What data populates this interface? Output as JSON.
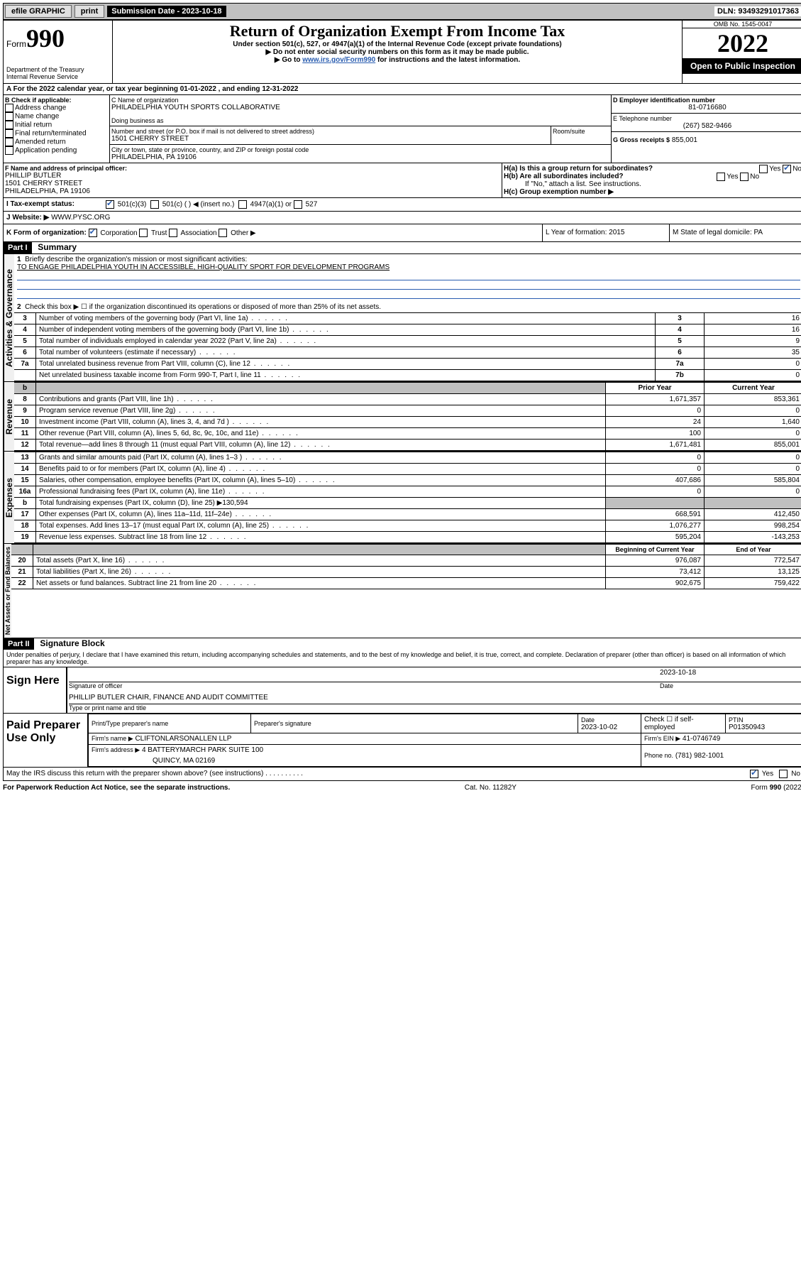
{
  "topbar": {
    "efile": "efile GRAPHIC",
    "print": "print",
    "subdate_label": "Submission Date - ",
    "subdate": "2023-10-18",
    "dln": "DLN: 93493291017363"
  },
  "header": {
    "form_label": "Form",
    "form_num": "990",
    "title": "Return of Organization Exempt From Income Tax",
    "sub1": "Under section 501(c), 527, or 4947(a)(1) of the Internal Revenue Code (except private foundations)",
    "sub2": "▶ Do not enter social security numbers on this form as it may be made public.",
    "sub3_prefix": "▶ Go to ",
    "sub3_link": "www.irs.gov/Form990",
    "sub3_suffix": " for instructions and the latest information.",
    "dept": "Department of the Treasury",
    "irs": "Internal Revenue Service",
    "omb": "OMB No. 1545-0047",
    "year": "2022",
    "inspect": "Open to Public Inspection"
  },
  "sectionA": {
    "calendar": "A For the 2022 calendar year, or tax year beginning 01-01-2022   , and ending 12-31-2022",
    "checkB_label": "B Check if applicable:",
    "checks": [
      "Address change",
      "Name change",
      "Initial return",
      "Final return/terminated",
      "Amended return",
      "Application pending"
    ],
    "nameC_label": "C Name of organization",
    "orgname": "PHILADELPHIA YOUTH SPORTS COLLABORATIVE",
    "dba": "Doing business as",
    "street_label": "Number and street (or P.O. box if mail is not delivered to street address)",
    "room": "Room/suite",
    "street": "1501 CHERRY STREET",
    "city_label": "City or town, state or province, country, and ZIP or foreign postal code",
    "city": "PHILADELPHIA, PA  19106",
    "ein_label": "D Employer identification number",
    "ein": "81-0716680",
    "tel_label": "E Telephone number",
    "tel": "(267) 582-9466",
    "gross_label": "G Gross receipts $",
    "gross": "855,001",
    "officerF_label": "F Name and address of principal officer:",
    "officer_name": "PHILLIP BUTLER",
    "officer_street": "1501 CHERRY STREET",
    "officer_city": "PHILADELPHIA, PA  19106",
    "Ha_label": "H(a)  Is this a group return for subordinates?",
    "Hb_label": "H(b)  Are all subordinates included?",
    "Hb_note": "If \"No,\" attach a list. See instructions.",
    "Hc_label": "H(c)  Group exemption number ▶",
    "yes": "Yes",
    "no": "No",
    "taxI_label": "I   Tax-exempt status:",
    "tax_opts": [
      "501(c)(3)",
      "501(c) (  ) ◀ (insert no.)",
      "4947(a)(1) or",
      "527"
    ],
    "websiteJ_label": "J   Website: ▶",
    "website": "WWW.PYSC.ORG",
    "formK_label": "K Form of organization:",
    "formK_opts": [
      "Corporation",
      "Trust",
      "Association",
      "Other ▶"
    ],
    "yearL": "L Year of formation: 2015",
    "stateM": "M State of legal domicile: PA"
  },
  "partI": {
    "header": "Part I",
    "title": "Summary",
    "line1_label": "Briefly describe the organization's mission or most significant activities:",
    "mission": "TO ENGAGE PHILADELPHIA YOUTH IN ACCESSIBLE, HIGH-QUALITY SPORT FOR DEVELOPMENT PROGRAMS",
    "line2": "Check this box ▶ ☐ if the organization discontinued its operations or disposed of more than 25% of its net assets.",
    "vlabels": {
      "gov": "Activities & Governance",
      "rev": "Revenue",
      "exp": "Expenses",
      "net": "Net Assets or Fund Balances"
    },
    "gov_rows": [
      {
        "n": "3",
        "d": "Number of voting members of the governing body (Part VI, line 1a)",
        "box": "3",
        "v": "16"
      },
      {
        "n": "4",
        "d": "Number of independent voting members of the governing body (Part VI, line 1b)",
        "box": "4",
        "v": "16"
      },
      {
        "n": "5",
        "d": "Total number of individuals employed in calendar year 2022 (Part V, line 2a)",
        "box": "5",
        "v": "9"
      },
      {
        "n": "6",
        "d": "Total number of volunteers (estimate if necessary)",
        "box": "6",
        "v": "35"
      },
      {
        "n": "7a",
        "d": "Total unrelated business revenue from Part VIII, column (C), line 12",
        "box": "7a",
        "v": "0"
      },
      {
        "n": "",
        "d": "Net unrelated business taxable income from Form 990-T, Part I, line 11",
        "box": "7b",
        "v": "0"
      }
    ],
    "prior": "Prior Year",
    "current": "Current Year",
    "rev_rows": [
      {
        "n": "8",
        "d": "Contributions and grants (Part VIII, line 1h)",
        "p": "1,671,357",
        "c": "853,361"
      },
      {
        "n": "9",
        "d": "Program service revenue (Part VIII, line 2g)",
        "p": "0",
        "c": "0"
      },
      {
        "n": "10",
        "d": "Investment income (Part VIII, column (A), lines 3, 4, and 7d )",
        "p": "24",
        "c": "1,640"
      },
      {
        "n": "11",
        "d": "Other revenue (Part VIII, column (A), lines 5, 6d, 8c, 9c, 10c, and 11e)",
        "p": "100",
        "c": "0"
      },
      {
        "n": "12",
        "d": "Total revenue—add lines 8 through 11 (must equal Part VIII, column (A), line 12)",
        "p": "1,671,481",
        "c": "855,001"
      }
    ],
    "exp_rows": [
      {
        "n": "13",
        "d": "Grants and similar amounts paid (Part IX, column (A), lines 1–3 )",
        "p": "0",
        "c": "0"
      },
      {
        "n": "14",
        "d": "Benefits paid to or for members (Part IX, column (A), line 4)",
        "p": "0",
        "c": "0"
      },
      {
        "n": "15",
        "d": "Salaries, other compensation, employee benefits (Part IX, column (A), lines 5–10)",
        "p": "407,686",
        "c": "585,804"
      },
      {
        "n": "16a",
        "d": "Professional fundraising fees (Part IX, column (A), line 11e)",
        "p": "0",
        "c": "0"
      },
      {
        "n": "b",
        "d": "Total fundraising expenses (Part IX, column (D), line 25) ▶130,594",
        "p": "",
        "c": "",
        "shaded": true
      },
      {
        "n": "17",
        "d": "Other expenses (Part IX, column (A), lines 11a–11d, 11f–24e)",
        "p": "668,591",
        "c": "412,450"
      },
      {
        "n": "18",
        "d": "Total expenses. Add lines 13–17 (must equal Part IX, column (A), line 25)",
        "p": "1,076,277",
        "c": "998,254"
      },
      {
        "n": "19",
        "d": "Revenue less expenses. Subtract line 18 from line 12",
        "p": "595,204",
        "c": "-143,253"
      }
    ],
    "begin": "Beginning of Current Year",
    "end": "End of Year",
    "net_rows": [
      {
        "n": "20",
        "d": "Total assets (Part X, line 16)",
        "p": "976,087",
        "c": "772,547"
      },
      {
        "n": "21",
        "d": "Total liabilities (Part X, line 26)",
        "p": "73,412",
        "c": "13,125"
      },
      {
        "n": "22",
        "d": "Net assets or fund balances. Subtract line 21 from line 20",
        "p": "902,675",
        "c": "759,422"
      }
    ]
  },
  "partII": {
    "header": "Part II",
    "title": "Signature Block",
    "declaration": "Under penalties of perjury, I declare that I have examined this return, including accompanying schedules and statements, and to the best of my knowledge and belief, it is true, correct, and complete. Declaration of preparer (other than officer) is based on all information of which preparer has any knowledge.",
    "sign_here": "Sign Here",
    "sig_officer": "Signature of officer",
    "sig_date": "2023-10-18",
    "date_label": "Date",
    "officer_name": "PHILLIP BUTLER  CHAIR, FINANCE AND AUDIT COMMITTEE",
    "type_name": "Type or print name and title",
    "paid": "Paid Preparer Use Only",
    "prep_name_label": "Print/Type preparer's name",
    "prep_sig_label": "Preparer's signature",
    "prep_date_label": "Date",
    "prep_date": "2023-10-02",
    "check_self": "Check ☐ if self-employed",
    "ptin_label": "PTIN",
    "ptin": "P01350943",
    "firm_name_label": "Firm's name   ▶",
    "firm_name": "CLIFTONLARSONALLEN LLP",
    "firm_ein_label": "Firm's EIN ▶",
    "firm_ein": "41-0746749",
    "firm_addr_label": "Firm's address ▶",
    "firm_addr1": "4 BATTERYMARCH PARK SUITE 100",
    "firm_addr2": "QUINCY, MA  02169",
    "phone_label": "Phone no.",
    "phone": "(781) 982-1001",
    "discuss": "May the IRS discuss this return with the preparer shown above? (see instructions)",
    "discuss_yes": "Yes",
    "discuss_no": "No"
  },
  "footer": {
    "paperwork": "For Paperwork Reduction Act Notice, see the separate instructions.",
    "catno": "Cat. No. 11282Y",
    "formno": "Form 990 (2022)"
  }
}
